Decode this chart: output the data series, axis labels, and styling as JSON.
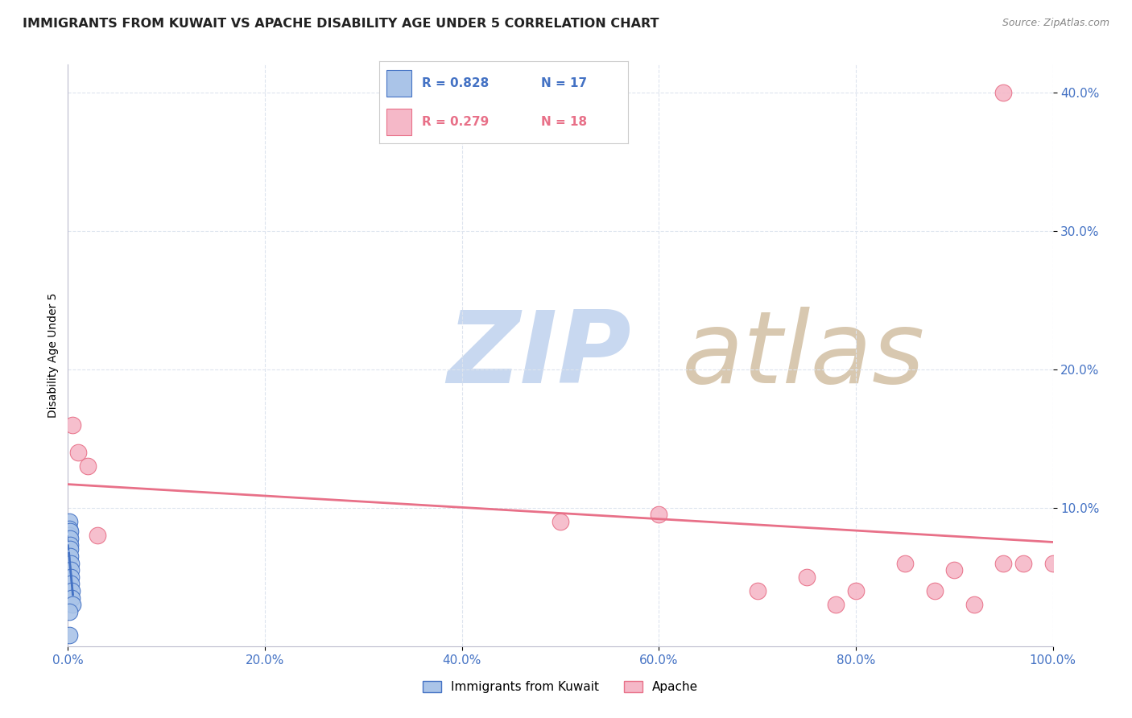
{
  "title": "IMMIGRANTS FROM KUWAIT VS APACHE DISABILITY AGE UNDER 5 CORRELATION CHART",
  "source": "Source: ZipAtlas.com",
  "ylabel": "Disability Age Under 5",
  "xlim": [
    0.0,
    1.0
  ],
  "ylim": [
    0.0,
    0.42
  ],
  "yticks": [
    0.1,
    0.2,
    0.3,
    0.4
  ],
  "xticks": [
    0.0,
    0.2,
    0.4,
    0.6,
    0.8,
    1.0
  ],
  "xtick_labels": [
    "0.0%",
    "20.0%",
    "40.0%",
    "60.0%",
    "80.0%",
    "100.0%"
  ],
  "ytick_labels": [
    "10.0%",
    "20.0%",
    "30.0%",
    "40.0%"
  ],
  "legend_kuwait_r": "R = 0.828",
  "legend_kuwait_n": "N = 17",
  "legend_apache_r": "R = 0.279",
  "legend_apache_n": "N = 18",
  "kuwait_x": [
    0.001,
    0.001,
    0.001,
    0.002,
    0.002,
    0.002,
    0.002,
    0.002,
    0.003,
    0.003,
    0.003,
    0.003,
    0.004,
    0.004,
    0.005,
    0.001,
    0.001
  ],
  "kuwait_y": [
    0.09,
    0.085,
    0.08,
    0.083,
    0.078,
    0.073,
    0.07,
    0.065,
    0.06,
    0.055,
    0.05,
    0.045,
    0.04,
    0.035,
    0.03,
    0.025,
    0.008
  ],
  "apache_x": [
    0.005,
    0.01,
    0.02,
    0.03,
    0.5,
    0.6,
    0.7,
    0.75,
    0.78,
    0.8,
    0.85,
    0.88,
    0.9,
    0.92,
    0.95,
    0.97,
    1.0,
    0.95
  ],
  "apache_y": [
    0.16,
    0.14,
    0.13,
    0.08,
    0.09,
    0.095,
    0.04,
    0.05,
    0.03,
    0.04,
    0.06,
    0.04,
    0.055,
    0.03,
    0.06,
    0.06,
    0.06,
    0.4
  ],
  "blue_color": "#aac4e8",
  "pink_color": "#f5b8c8",
  "blue_line_color": "#4472c4",
  "pink_line_color": "#e87088",
  "grid_color": "#dde4ee",
  "title_color": "#222222",
  "axis_label_color": "#4472c4",
  "watermark_zip_color": "#c8d8f0",
  "watermark_atlas_color": "#d8c8b0"
}
